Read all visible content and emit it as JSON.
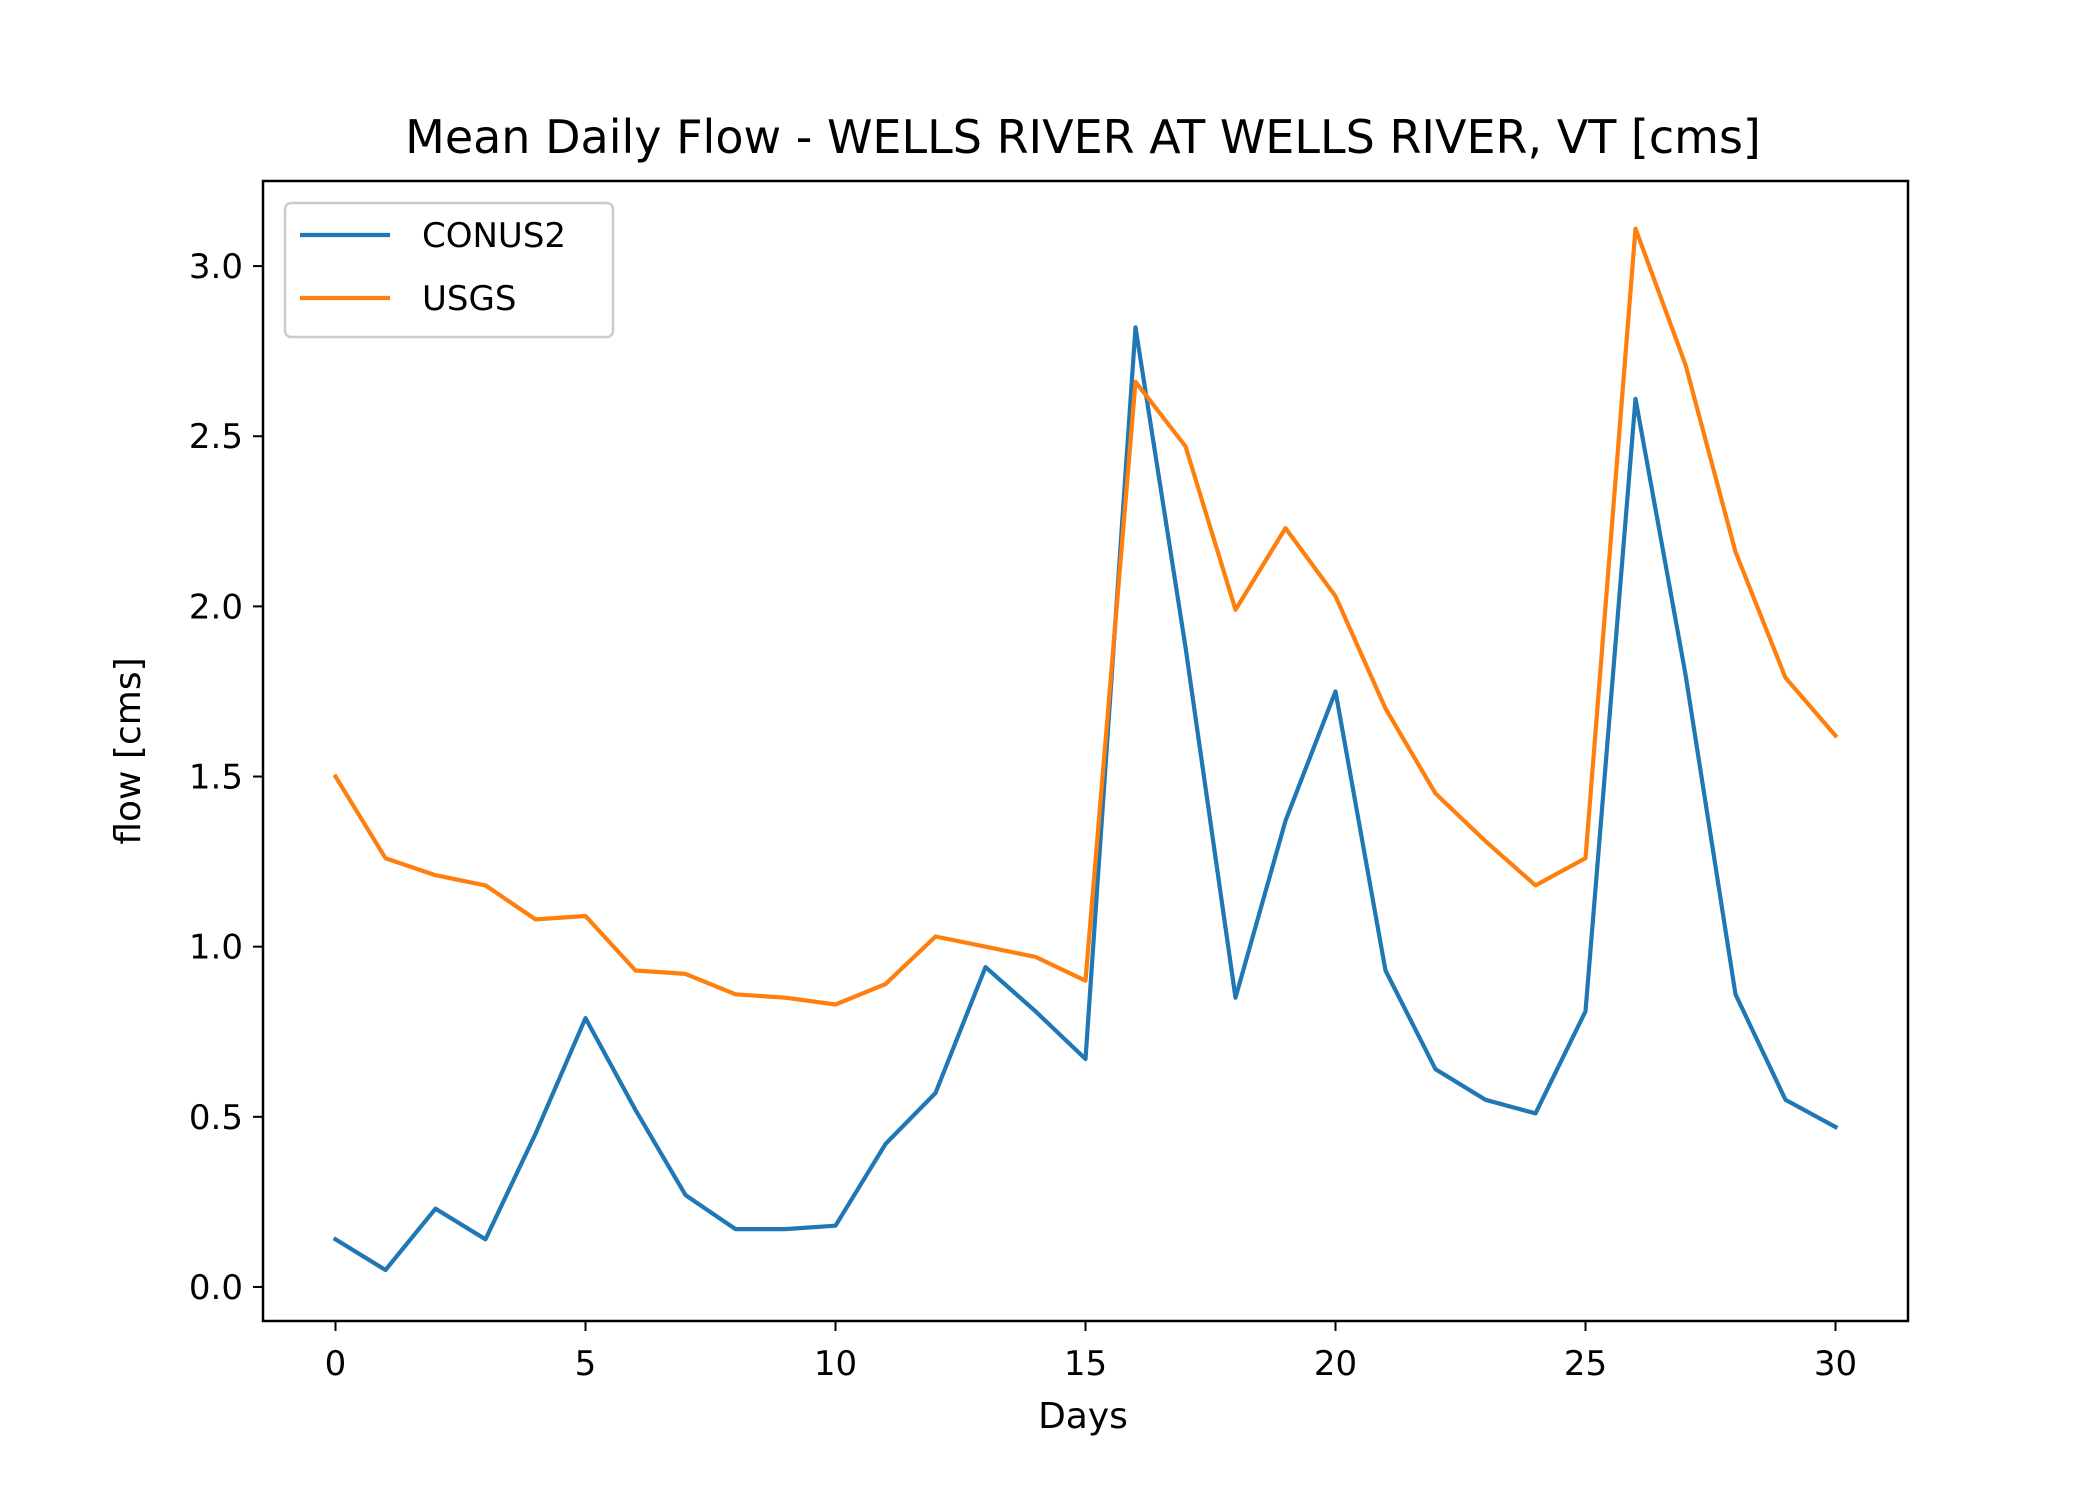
{
  "chart_data": {
    "type": "line",
    "title": "Mean Daily Flow - WELLS RIVER AT WELLS RIVER, VT [cms]",
    "xlabel": "Days",
    "ylabel": "flow [cms]",
    "xlim": [
      -1.45,
      31.45
    ],
    "ylim": [
      -0.1,
      3.25
    ],
    "xticks": [
      0,
      5,
      10,
      15,
      20,
      25,
      30
    ],
    "xtick_labels": [
      "0",
      "5",
      "10",
      "15",
      "20",
      "25",
      "30"
    ],
    "yticks": [
      0.0,
      0.5,
      1.0,
      1.5,
      2.0,
      2.5,
      3.0
    ],
    "ytick_labels": [
      "0.0",
      "0.5",
      "1.0",
      "1.5",
      "2.0",
      "2.5",
      "3.0"
    ],
    "grid": false,
    "legend_position": "top-left",
    "x": [
      0,
      1,
      2,
      3,
      4,
      5,
      6,
      7,
      8,
      9,
      10,
      11,
      12,
      13,
      14,
      15,
      16,
      17,
      18,
      19,
      20,
      21,
      22,
      23,
      24,
      25,
      26,
      27,
      28,
      29,
      30
    ],
    "series": [
      {
        "name": "CONUS2",
        "color": "#1f77b4",
        "values": [
          0.14,
          0.05,
          0.23,
          0.14,
          0.45,
          0.79,
          0.52,
          0.27,
          0.17,
          0.17,
          0.18,
          0.42,
          0.57,
          0.94,
          0.81,
          0.67,
          2.82,
          1.88,
          0.85,
          1.37,
          1.75,
          0.93,
          0.64,
          0.55,
          0.51,
          0.81,
          2.61,
          1.8,
          0.86,
          0.55,
          0.47
        ]
      },
      {
        "name": "USGS",
        "color": "#ff7f0e",
        "values": [
          1.5,
          1.26,
          1.21,
          1.18,
          1.08,
          1.09,
          0.93,
          0.92,
          0.86,
          0.85,
          0.83,
          0.89,
          1.03,
          1.0,
          0.97,
          0.9,
          2.66,
          2.47,
          1.99,
          2.23,
          2.03,
          1.7,
          1.45,
          1.31,
          1.18,
          1.26,
          3.11,
          2.71,
          2.16,
          1.79,
          1.62
        ]
      }
    ]
  }
}
